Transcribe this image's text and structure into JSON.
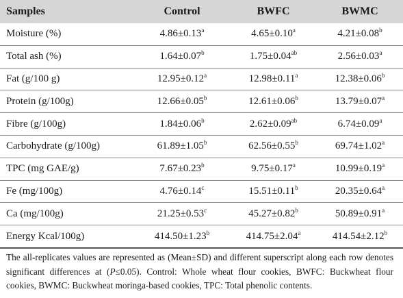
{
  "table": {
    "headers": [
      "Samples",
      "Control",
      "BWFC",
      "BWMC"
    ],
    "rows": [
      {
        "label": "Moisture (%)",
        "cells": [
          [
            "4.86±0.13",
            "a"
          ],
          [
            "4.65±0.10",
            "a"
          ],
          [
            "4.21±0.08",
            "b"
          ]
        ]
      },
      {
        "label": "Total ash (%)",
        "cells": [
          [
            "1.64±0.07",
            "b"
          ],
          [
            "1.75±0.04",
            "ab"
          ],
          [
            "2.56±0.03",
            "a"
          ]
        ]
      },
      {
        "label": "Fat (g/100 g)",
        "cells": [
          [
            "12.95±0.12",
            "a"
          ],
          [
            "12.98±0.11",
            "a"
          ],
          [
            "12.38±0.06",
            "b"
          ]
        ]
      },
      {
        "label": "Protein (g/100g)",
        "cells": [
          [
            "12.66±0.05",
            "b"
          ],
          [
            "12.61±0.06",
            "b"
          ],
          [
            "13.79±0.07",
            "a"
          ]
        ]
      },
      {
        "label": "Fibre (g/100g)",
        "cells": [
          [
            "1.84±0.06",
            "b"
          ],
          [
            "2.62±0.09",
            "ab"
          ],
          [
            "6.74±0.09",
            "a"
          ]
        ]
      },
      {
        "label": "Carbohydrate (g/100g)",
        "cells": [
          [
            "61.89±1.05",
            "b"
          ],
          [
            "62.56±0.55",
            "b"
          ],
          [
            "69.74±1.02",
            "a"
          ]
        ]
      },
      {
        "label": "TPC (mg GAE/g)",
        "cells": [
          [
            "7.67±0.23",
            "b"
          ],
          [
            "9.75±0.17",
            "a"
          ],
          [
            "10.99±0.19",
            "a"
          ]
        ]
      },
      {
        "label": "Fe (mg/100g)",
        "cells": [
          [
            "4.76±0.14",
            "c"
          ],
          [
            "15.51±0.11",
            "b"
          ],
          [
            "20.35±0.64",
            "a"
          ]
        ]
      },
      {
        "label": "Ca (mg/100g)",
        "cells": [
          [
            "21.25±0.53",
            "c"
          ],
          [
            "45.27±0.82",
            "b"
          ],
          [
            "50.89±0.91",
            "a"
          ]
        ]
      },
      {
        "label": "Energy Kcal/100g)",
        "cells": [
          [
            "414.50±1.23",
            "b"
          ],
          [
            "414.75±2.04",
            "a"
          ],
          [
            "414.54±2.12",
            "b"
          ]
        ]
      }
    ]
  },
  "footnote": {
    "before_italic": "The all-replicates values are represented as (Mean±SD) and different superscript along each row denotes significant differences at (",
    "italic": "P",
    "after_italic": "≤0.05). Control: Whole wheat flour cookies, BWFC: Buckwheat flour cookies, BWMC: Buckwheat moringa-based cookies, TPC: Total phenolic contents."
  }
}
